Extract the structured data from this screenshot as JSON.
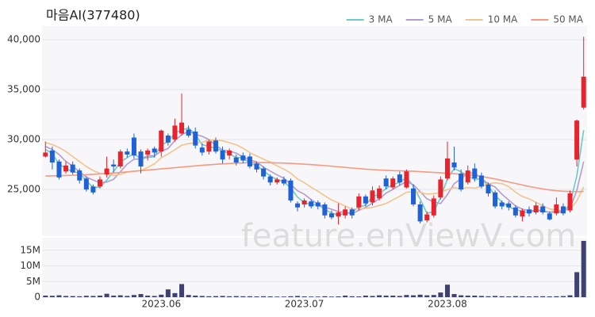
{
  "chart_data": [
    {
      "type": "candlestick",
      "title": "마음AI(377480)",
      "watermark": "feature.enViewV.com",
      "categories": [
        null,
        null,
        null,
        null,
        null,
        null,
        null,
        null,
        null,
        null,
        null,
        null,
        null,
        null,
        null,
        null,
        null,
        "2023.06",
        null,
        null,
        null,
        null,
        null,
        null,
        null,
        null,
        null,
        null,
        null,
        null,
        null,
        null,
        null,
        null,
        null,
        null,
        null,
        null,
        "2023.07",
        null,
        null,
        null,
        null,
        null,
        null,
        null,
        null,
        null,
        null,
        null,
        null,
        null,
        null,
        null,
        null,
        null,
        null,
        null,
        null,
        "2023.08",
        null,
        null,
        null,
        null,
        null,
        null,
        null,
        null,
        null,
        null,
        null,
        null,
        null,
        null,
        null,
        null,
        null,
        null,
        null,
        null
      ],
      "open": [
        28300,
        28900,
        27800,
        26800,
        27500,
        26900,
        26100,
        25300,
        25300,
        26500,
        27500,
        27300,
        28800,
        30200,
        28800,
        28500,
        29100,
        28800,
        30400,
        30000,
        30600,
        31000,
        30800,
        29200,
        28800,
        29900,
        28900,
        28400,
        28200,
        28400,
        28300,
        27600,
        27100,
        26300,
        25700,
        26000,
        25900,
        23600,
        23500,
        23800,
        23700,
        23500,
        22600,
        22300,
        22400,
        23000,
        23200,
        24300,
        23700,
        24100,
        26100,
        25200,
        26500,
        25200,
        25100,
        23500,
        21900,
        22400,
        24200,
        26100,
        27700,
        26600,
        25700,
        27100,
        26400,
        25500,
        24700,
        23700,
        23600,
        23200,
        22300,
        23000,
        22700,
        23300,
        22600,
        22600,
        23300,
        22900,
        28000,
        33200
      ],
      "high": [
        29800,
        29300,
        28000,
        27800,
        27800,
        27100,
        26300,
        25500,
        26300,
        28300,
        28000,
        29000,
        29100,
        30600,
        29000,
        29100,
        29300,
        31000,
        30600,
        32100,
        34600,
        31400,
        31200,
        29600,
        30000,
        30200,
        29300,
        29100,
        28500,
        28700,
        28600,
        27800,
        27300,
        26500,
        26200,
        26300,
        26100,
        23800,
        24100,
        24000,
        23900,
        23700,
        22900,
        23600,
        23300,
        23200,
        24600,
        24500,
        25300,
        25400,
        26400,
        26300,
        26800,
        27000,
        25500,
        23800,
        22800,
        24400,
        26300,
        29800,
        29300,
        27000,
        27400,
        27600,
        26700,
        25700,
        24900,
        23900,
        23800,
        23400,
        23100,
        23300,
        23700,
        23600,
        22800,
        24200,
        23600,
        24900,
        32000,
        40300
      ],
      "low": [
        28200,
        27000,
        26000,
        26600,
        26500,
        25600,
        24800,
        24500,
        25100,
        26200,
        26700,
        27100,
        28200,
        28100,
        26600,
        27900,
        28200,
        28300,
        29400,
        29800,
        30400,
        30200,
        29100,
        28400,
        28500,
        28600,
        27600,
        28000,
        27400,
        27600,
        27100,
        26700,
        26000,
        25400,
        25500,
        25400,
        23700,
        22800,
        23200,
        23100,
        23000,
        22100,
        22000,
        21500,
        22100,
        22100,
        22900,
        23300,
        23400,
        23900,
        25000,
        25000,
        25400,
        25100,
        23300,
        21600,
        21700,
        22200,
        24000,
        25900,
        26900,
        24800,
        25500,
        25800,
        25100,
        24300,
        23100,
        23000,
        22900,
        22200,
        21800,
        22300,
        22500,
        22500,
        21900,
        22400,
        22400,
        22700,
        27300,
        33000
      ],
      "close": [
        28700,
        27700,
        26200,
        27400,
        26700,
        25900,
        25000,
        24700,
        26000,
        27100,
        27300,
        28800,
        28500,
        28400,
        27300,
        28900,
        28700,
        30900,
        29700,
        31400,
        31700,
        30400,
        29400,
        28700,
        29800,
        28800,
        28000,
        28900,
        27700,
        27900,
        27300,
        27000,
        26300,
        25700,
        26000,
        25600,
        23900,
        23200,
        23900,
        23300,
        23300,
        22400,
        22200,
        22700,
        23000,
        22400,
        24300,
        23600,
        24900,
        25100,
        25300,
        26100,
        25700,
        26800,
        23500,
        21800,
        22500,
        24100,
        26000,
        28100,
        27200,
        25000,
        26900,
        26100,
        25300,
        24600,
        23300,
        23300,
        23200,
        22400,
        22900,
        22600,
        23400,
        22700,
        22000,
        23500,
        22600,
        24600,
        31900,
        36300
      ],
      "up_color": "#e8232e",
      "down_color": "#1f62d6",
      "series": [
        {
          "name": "3 MA",
          "color": "#6ccac8",
          "values": [
            29000,
            28600,
            27533,
            27100,
            26767,
            26667,
            25867,
            25200,
            25233,
            25933,
            26800,
            27733,
            28200,
            28567,
            28067,
            28200,
            28300,
            29500,
            29767,
            30667,
            30933,
            31167,
            30500,
            29500,
            29300,
            29100,
            28867,
            28567,
            28200,
            28167,
            27633,
            27400,
            26867,
            26333,
            26000,
            25767,
            25167,
            24233,
            23667,
            23467,
            23500,
            23000,
            22633,
            22433,
            22633,
            22700,
            23233,
            23433,
            24267,
            24533,
            25100,
            25500,
            25700,
            26200,
            25333,
            24033,
            22600,
            22800,
            24200,
            26067,
            27100,
            26767,
            26367,
            26000,
            26100,
            25333,
            24400,
            23733,
            23267,
            22967,
            22833,
            22633,
            22967,
            22900,
            22700,
            22733,
            22700,
            23567,
            26367,
            30933
          ]
        },
        {
          "name": "5 MA",
          "color": "#b39ccf",
          "values": [
            29300,
            29000,
            28500,
            27800,
            27340,
            26780,
            26240,
            25940,
            25660,
            25740,
            26020,
            26780,
            27540,
            28020,
            28060,
            28380,
            28360,
            28840,
            29100,
            29920,
            30480,
            30820,
            30520,
            30320,
            30000,
            29420,
            28940,
            28840,
            28640,
            28260,
            27960,
            27760,
            27240,
            26840,
            26460,
            26120,
            25500,
            24880,
            24520,
            23980,
            23520,
            23220,
            23020,
            22780,
            22720,
            22540,
            22920,
            23200,
            23640,
            24060,
            24640,
            25000,
            25420,
            25800,
            25480,
            24780,
            24060,
            23740,
            23580,
            24500,
            25580,
            26080,
            26640,
            26660,
            26100,
            25580,
            25240,
            24520,
            23940,
            23360,
            23020,
            22880,
            22900,
            22800,
            22720,
            22840,
            22840,
            23080,
            24920,
            27780
          ]
        },
        {
          "name": "10 MA",
          "color": "#f2c38e",
          "values": [
            29700,
            29500,
            29200,
            28800,
            28300,
            27800,
            27300,
            26900,
            26600,
            26540,
            26400,
            26510,
            26740,
            26840,
            26900,
            27200,
            27570,
            28190,
            28560,
            28990,
            29430,
            29590,
            29680,
            29710,
            29960,
            29950,
            29880,
            29680,
            29480,
            29130,
            28690,
            28350,
            28040,
            27740,
            27360,
            27040,
            26630,
            26060,
            25680,
            25220,
            24820,
            24360,
            23950,
            23650,
            23350,
            23030,
            23070,
            23110,
            23210,
            23390,
            23590,
            23960,
            24310,
            24720,
            24770,
            24710,
            24530,
            24580,
            24690,
            24990,
            25180,
            25070,
            25190,
            25120,
            25300,
            25580,
            25660,
            25580,
            25300,
            24730,
            24300,
            24060,
            23710,
            23370,
            23040,
            22930,
            22860,
            22990,
            23860,
            25250
          ]
        },
        {
          "name": "50 MA",
          "color": "#f59a83",
          "values": [
            26350,
            26360,
            26380,
            26400,
            26420,
            26450,
            26480,
            26520,
            26560,
            26600,
            26650,
            26700,
            26760,
            26820,
            26880,
            26940,
            27000,
            27060,
            27120,
            27180,
            27240,
            27300,
            27360,
            27420,
            27470,
            27520,
            27560,
            27600,
            27630,
            27660,
            27680,
            27690,
            27690,
            27680,
            27660,
            27640,
            27610,
            27570,
            27530,
            27490,
            27440,
            27390,
            27330,
            27270,
            27210,
            27150,
            27090,
            27040,
            26990,
            26950,
            26920,
            26890,
            26870,
            26850,
            26820,
            26780,
            26740,
            26700,
            26660,
            26620,
            26580,
            26520,
            26460,
            26400,
            26300,
            26180,
            26050,
            25900,
            25750,
            25600,
            25450,
            25300,
            25170,
            25050,
            24950,
            24870,
            24820,
            24790,
            24780,
            24800
          ]
        }
      ],
      "legend": "top-right",
      "grid": true,
      "ylim": [
        20400,
        41200
      ],
      "yticks": [
        {
          "value": 25000,
          "label": "25,000"
        },
        {
          "value": 30000,
          "label": "30,000"
        },
        {
          "value": 35000,
          "label": "35,000"
        },
        {
          "value": 40000,
          "label": "40,000"
        }
      ]
    },
    {
      "type": "bar",
      "color": "#3d4174",
      "grid": true,
      "values": [
        500000,
        450000,
        600000,
        400000,
        350000,
        300000,
        450000,
        400000,
        500000,
        1100000,
        500000,
        600000,
        400000,
        700000,
        1000000,
        500000,
        400000,
        800000,
        2500000,
        1300000,
        4200000,
        700000,
        500000,
        400000,
        300000,
        350000,
        400000,
        300000,
        350000,
        300000,
        300000,
        250000,
        300000,
        250000,
        200000,
        200000,
        300000,
        400000,
        250000,
        200000,
        200000,
        300000,
        200000,
        250000,
        500000,
        300000,
        250000,
        500000,
        400000,
        600000,
        500000,
        500000,
        400000,
        700000,
        600000,
        800000,
        600000,
        700000,
        1500000,
        4000000,
        1000000,
        600000,
        500000,
        500000,
        400000,
        300000,
        400000,
        300000,
        250000,
        350000,
        300000,
        250000,
        300000,
        300000,
        250000,
        300000,
        350000,
        600000,
        8000000,
        18000000
      ],
      "ylim": [
        0,
        19000000
      ],
      "yticks": [
        0,
        {
          "value": 5000000,
          "label": "5M"
        },
        {
          "value": 10000000,
          "label": "10M"
        },
        {
          "value": 15000000,
          "label": "15M"
        }
      ]
    }
  ]
}
